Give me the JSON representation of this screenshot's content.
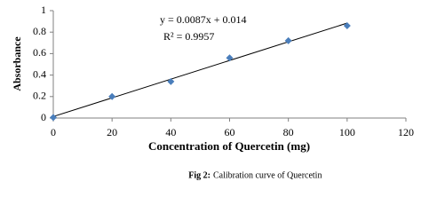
{
  "chart_data": {
    "type": "scatter",
    "x_label": "Concentration of Quercetin (mg)",
    "y_label": "Absorbance",
    "x": [
      0,
      20,
      40,
      60,
      80,
      100
    ],
    "series": [
      {
        "name": "Absorbance",
        "color": "#4a7ebb",
        "values": [
          0.005,
          0.2,
          0.34,
          0.56,
          0.72,
          0.86
        ]
      }
    ],
    "trendline": {
      "slope": 0.0087,
      "intercept": 0.014,
      "color": "#000000"
    },
    "annotations": [
      "y = 0.0087x + 0.014",
      "R² = 0.9957"
    ],
    "xlim": [
      0,
      120
    ],
    "xticks": [
      0,
      20,
      40,
      60,
      80,
      100,
      120
    ],
    "ylim": [
      0,
      1
    ],
    "yticks": [
      0,
      0.2,
      0.4,
      0.6,
      0.8,
      1
    ],
    "grid": false
  },
  "caption": {
    "label": "Fig 2:",
    "text": "Calibration curve of Quercetin"
  }
}
